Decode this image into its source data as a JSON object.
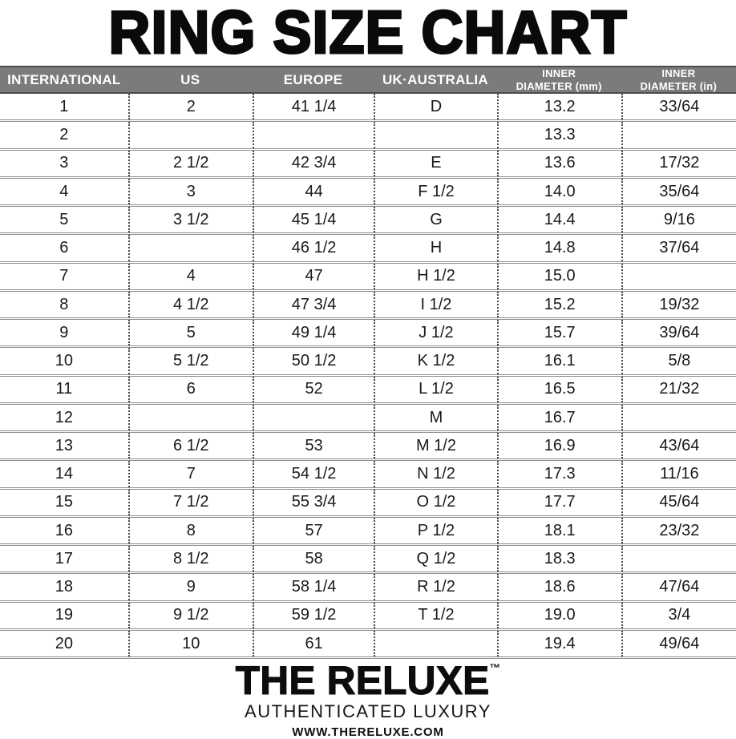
{
  "title": "RING SIZE CHART",
  "chart_data": {
    "type": "table",
    "title": "RING SIZE CHART",
    "columns": [
      "INTERNATIONAL",
      "US",
      "EUROPE",
      "UK·AUSTRALIA",
      "INNER\nDIAMETER (mm)",
      "INNER\nDIAMETER (in)"
    ],
    "rows": [
      [
        "1",
        "2",
        "41 1/4",
        "D",
        "13.2",
        "33/64"
      ],
      [
        "2",
        "",
        "",
        "",
        "13.3",
        ""
      ],
      [
        "3",
        "2 1/2",
        "42 3/4",
        "E",
        "13.6",
        "17/32"
      ],
      [
        "4",
        "3",
        "44",
        "F 1/2",
        "14.0",
        "35/64"
      ],
      [
        "5",
        "3 1/2",
        "45 1/4",
        "G",
        "14.4",
        "9/16"
      ],
      [
        "6",
        "",
        "46 1/2",
        "H",
        "14.8",
        "37/64"
      ],
      [
        "7",
        "4",
        "47",
        "H 1/2",
        "15.0",
        ""
      ],
      [
        "8",
        "4 1/2",
        "47 3/4",
        "I 1/2",
        "15.2",
        "19/32"
      ],
      [
        "9",
        "5",
        "49 1/4",
        "J 1/2",
        "15.7",
        "39/64"
      ],
      [
        "10",
        "5 1/2",
        "50 1/2",
        "K 1/2",
        "16.1",
        "5/8"
      ],
      [
        "11",
        "6",
        "52",
        "L 1/2",
        "16.5",
        "21/32"
      ],
      [
        "12",
        "",
        "",
        "M",
        "16.7",
        ""
      ],
      [
        "13",
        "6 1/2",
        "53",
        "M 1/2",
        "16.9",
        "43/64"
      ],
      [
        "14",
        "7",
        "54 1/2",
        "N 1/2",
        "17.3",
        "11/16"
      ],
      [
        "15",
        "7 1/2",
        "55 3/4",
        "O 1/2",
        "17.7",
        "45/64"
      ],
      [
        "16",
        "8",
        "57",
        "P 1/2",
        "18.1",
        "23/32"
      ],
      [
        "17",
        "8 1/2",
        "58",
        "Q 1/2",
        "18.3",
        ""
      ],
      [
        "18",
        "9",
        "58 1/4",
        "R 1/2",
        "18.6",
        "47/64"
      ],
      [
        "19",
        "9 1/2",
        "59 1/2",
        "T 1/2",
        "19.0",
        "3/4"
      ],
      [
        "20",
        "10",
        "61",
        "",
        "19.4",
        "49/64"
      ]
    ]
  },
  "footer": {
    "brand": "THE RELUXE",
    "trademark": "™",
    "tagline": "AUTHENTICATED LUXURY",
    "website": "WWW.THERELUXE.COM"
  },
  "colors": {
    "header_bg": "#7b7b7b",
    "header_text": "#ffffff",
    "row_separator": "#8e8e8e",
    "column_dots": "#4a4a4a",
    "text": "#1a1a1a",
    "title_text": "#0a0a0a"
  }
}
